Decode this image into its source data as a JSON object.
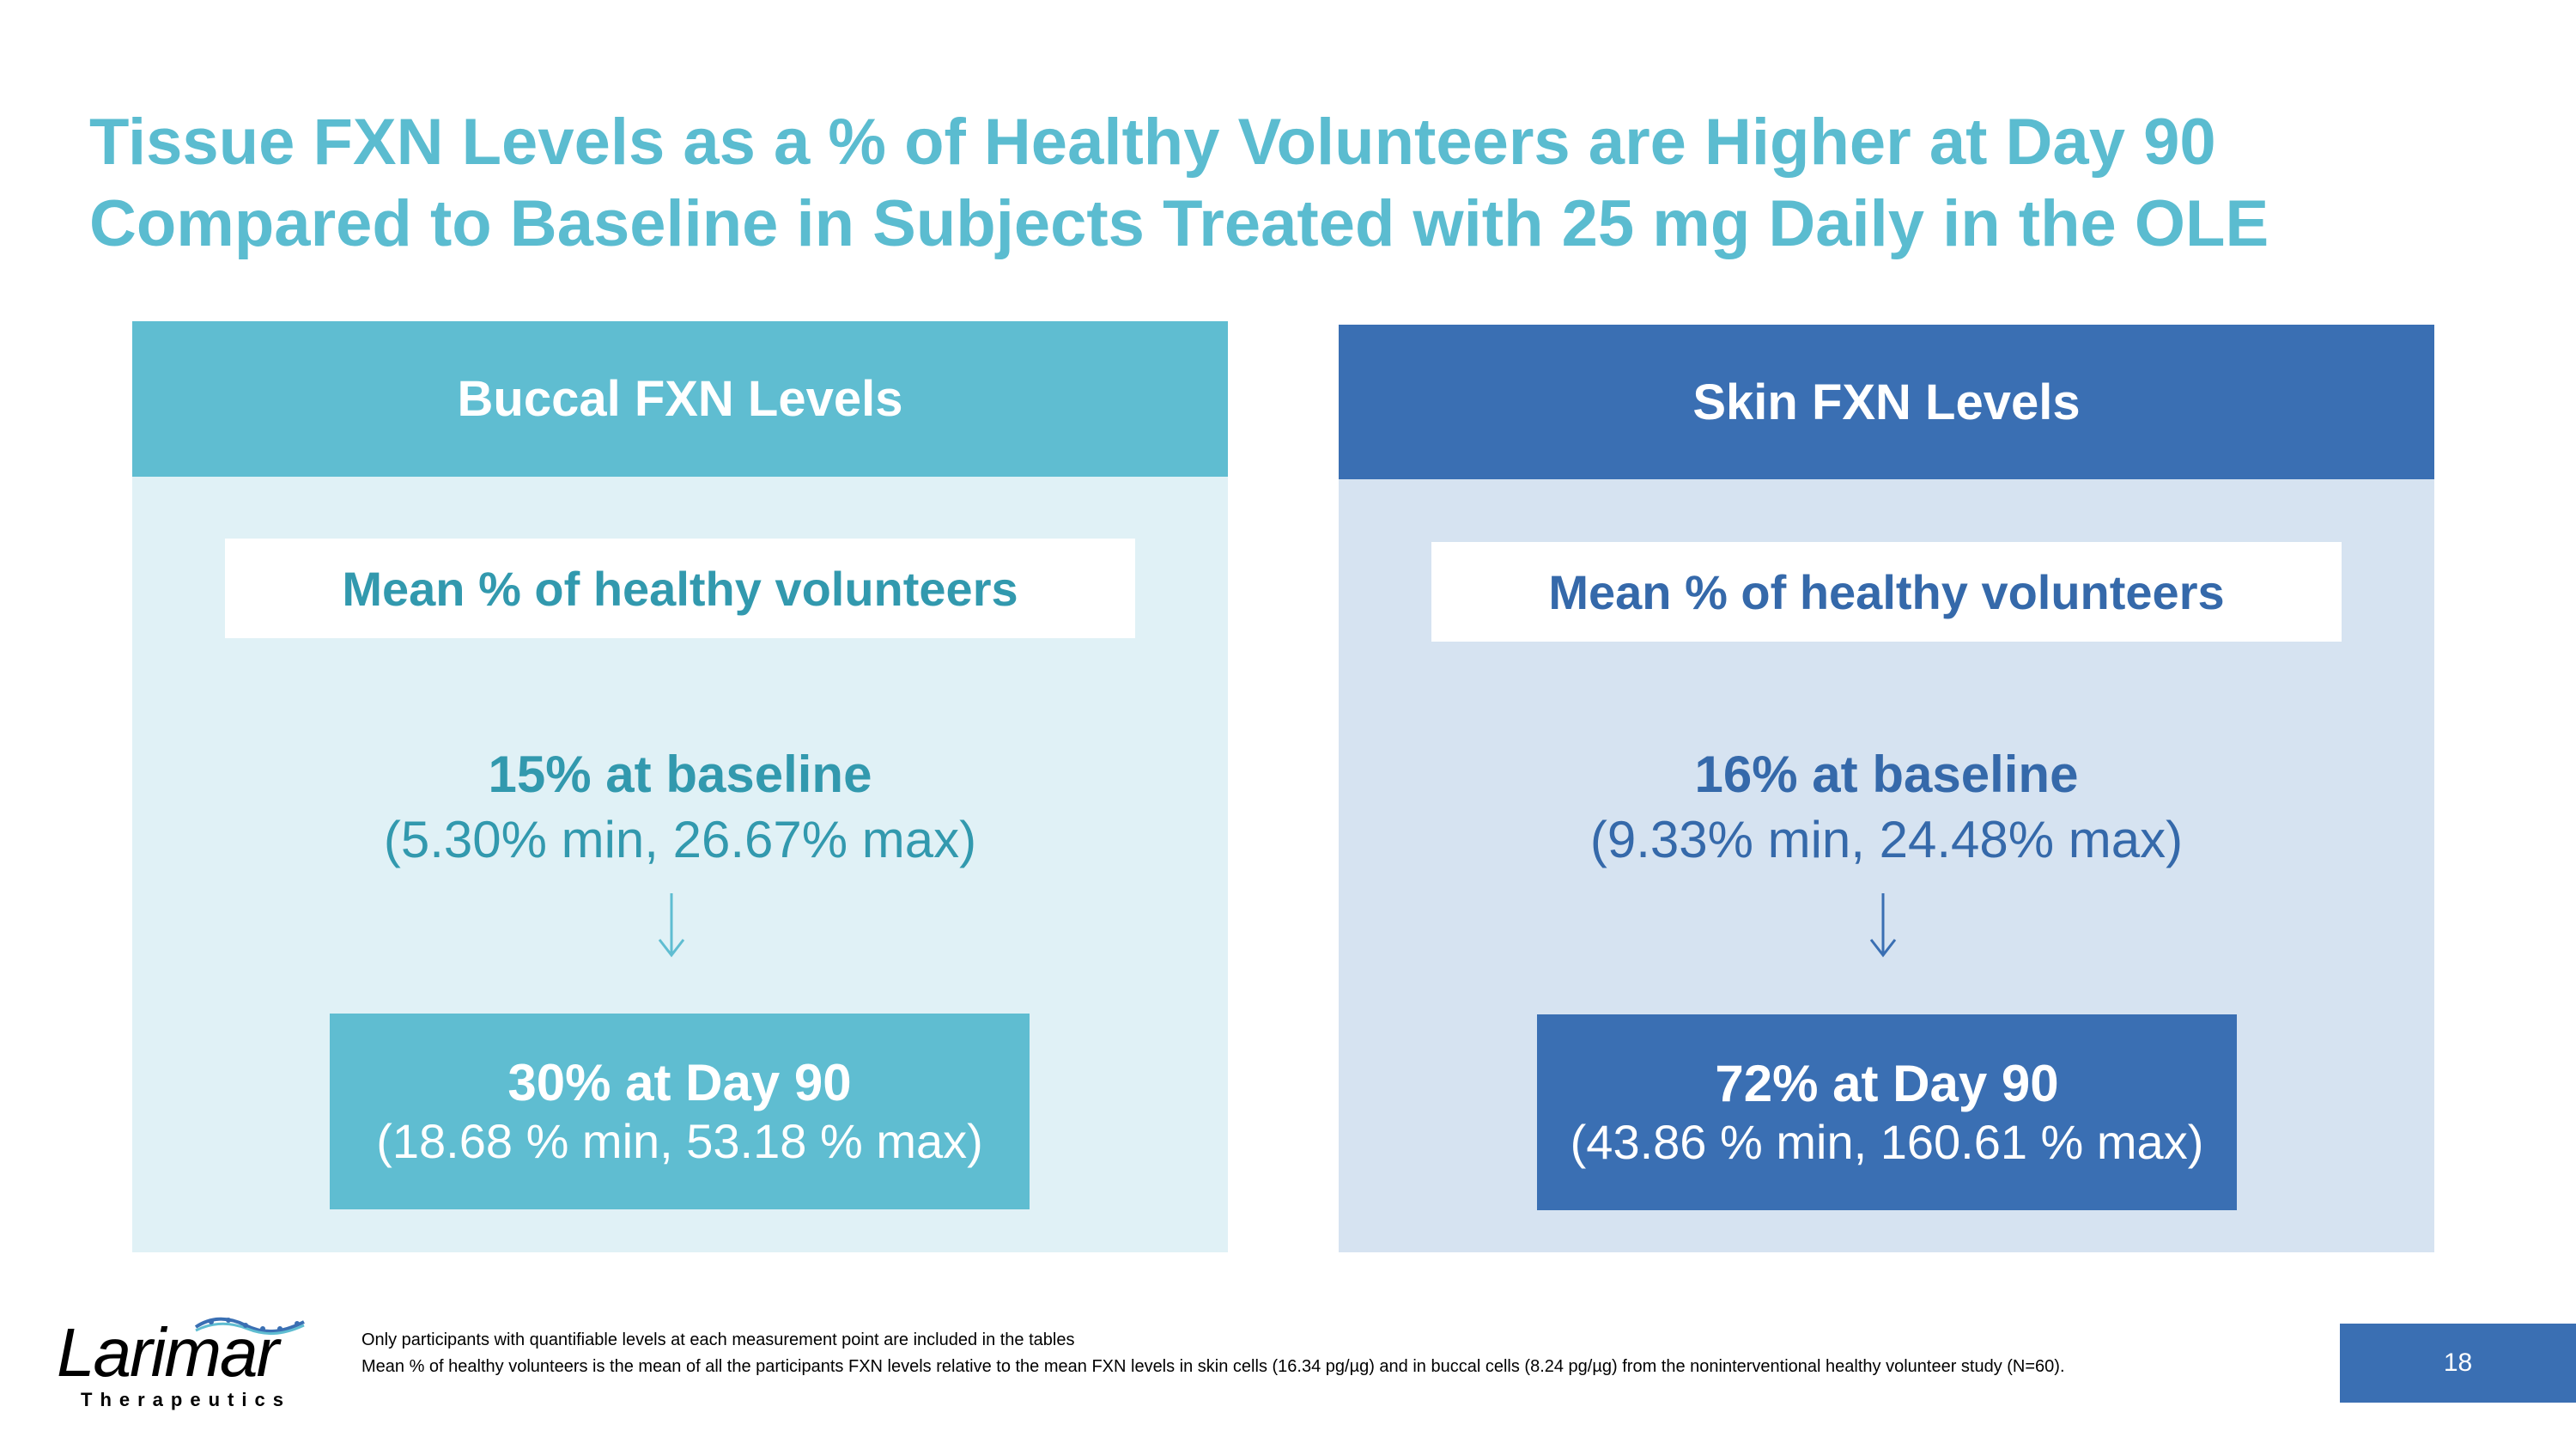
{
  "title": {
    "line1": "Tissue FXN Levels as a % of Healthy Volunteers are Higher at Day 90",
    "line2": "Compared to Baseline in Subjects Treated with 25 mg Daily in the OLE"
  },
  "panels": {
    "buccal": {
      "header": "Buccal FXN Levels",
      "subhead": "Mean % of healthy volunteers",
      "baseline": "15% at baseline",
      "baseline_range": "(5.30% min, 26.67% max)",
      "arrow": "↓",
      "day90": "30% at Day 90",
      "day90_range": "(18.68 % min, 53.18 % max)"
    },
    "skin": {
      "header": "Skin FXN Levels",
      "subhead": "Mean % of healthy volunteers",
      "baseline": "16% at baseline",
      "baseline_range": "(9.33% min, 24.48% max)",
      "arrow": "↓",
      "day90": "72% at Day 90",
      "day90_range": "(43.86 % min, 160.61 % max)"
    }
  },
  "footnotes": {
    "line1": "Only participants with quantifiable levels at each measurement point are included in the tables",
    "line2": "Mean % of healthy volunteers is the mean of all the participants FXN levels relative to the mean FXN levels in skin cells (16.34 pg/µg) and in buccal cells (8.24 pg/µg)  from the noninterventional healthy volunteer study (N=60)."
  },
  "logo": {
    "name": "Larimar",
    "tagline": "Therapeutics"
  },
  "page_number": "18",
  "colors": {
    "title": "#5bbcd0",
    "buccal_accent": "#5fbdd1",
    "buccal_bg": "#e0f1f6",
    "buccal_text": "#3299ae",
    "skin_accent": "#3a6fb3",
    "skin_bg": "#d6e3f1",
    "skin_text": "#3569aa"
  }
}
